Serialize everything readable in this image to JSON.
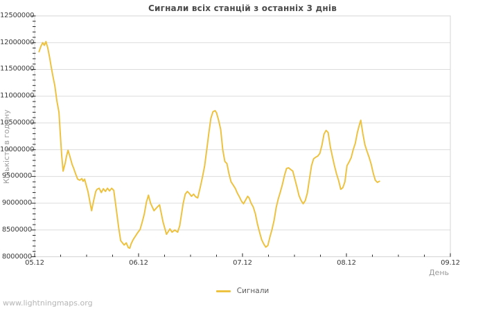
{
  "page": {
    "watermark": "www.lightningmaps.org"
  },
  "chart_data": {
    "type": "line",
    "title": "Сигнали всіх станцій з останніх 3 днів",
    "xlabel": "День",
    "ylabel": "Кількість в годину",
    "legend": {
      "position": "bottom-center",
      "series_label": "Сигнали"
    },
    "grid": "horizontal-only",
    "ylim": [
      8000000,
      12500000
    ],
    "x_range_days": [
      0,
      4
    ],
    "x_tick_labels": [
      "05.12",
      "06.12",
      "07.12",
      "08.12",
      "09.12"
    ],
    "x_tick_positions_days": [
      0,
      1,
      2,
      3,
      4
    ],
    "x_minor_step_days": 0.25,
    "y_tick_values": [
      8000000,
      8500000,
      9000000,
      9500000,
      10000000,
      10500000,
      11000000,
      11500000,
      12000000,
      12500000
    ],
    "y_tick_labels": [
      "8000000",
      "8500000",
      "9000000",
      "9500000",
      "10000000",
      "10500000",
      "11000000",
      "11500000",
      "12000000",
      "12500000"
    ],
    "y_minor_step": 100000,
    "colors": {
      "series": "#edc240",
      "grid": "#dcdcdc",
      "border": "#d4d4d4",
      "tick": "#222222",
      "tick_label": "#3a3a3a",
      "title": "#4a4a4a",
      "axis_title": "#9a9a9a",
      "watermark": "#b5b5b5"
    },
    "series": [
      {
        "name": "Сигнали",
        "points_days_value": [
          [
            0.042,
            11830000
          ],
          [
            0.06,
            11930000
          ],
          [
            0.078,
            12000000
          ],
          [
            0.093,
            11950000
          ],
          [
            0.109,
            12020000
          ],
          [
            0.127,
            11900000
          ],
          [
            0.145,
            11710000
          ],
          [
            0.16,
            11540000
          ],
          [
            0.18,
            11330000
          ],
          [
            0.194,
            11200000
          ],
          [
            0.214,
            10910000
          ],
          [
            0.234,
            10700000
          ],
          [
            0.247,
            10300000
          ],
          [
            0.26,
            9900000
          ],
          [
            0.274,
            9600000
          ],
          [
            0.294,
            9750000
          ],
          [
            0.307,
            9880000
          ],
          [
            0.321,
            9990000
          ],
          [
            0.341,
            9860000
          ],
          [
            0.361,
            9720000
          ],
          [
            0.374,
            9660000
          ],
          [
            0.394,
            9550000
          ],
          [
            0.414,
            9450000
          ],
          [
            0.434,
            9430000
          ],
          [
            0.454,
            9460000
          ],
          [
            0.467,
            9410000
          ],
          [
            0.481,
            9450000
          ],
          [
            0.501,
            9300000
          ],
          [
            0.514,
            9210000
          ],
          [
            0.534,
            9000000
          ],
          [
            0.548,
            8860000
          ],
          [
            0.568,
            9050000
          ],
          [
            0.588,
            9220000
          ],
          [
            0.601,
            9260000
          ],
          [
            0.621,
            9280000
          ],
          [
            0.641,
            9200000
          ],
          [
            0.661,
            9270000
          ],
          [
            0.681,
            9220000
          ],
          [
            0.701,
            9280000
          ],
          [
            0.721,
            9230000
          ],
          [
            0.741,
            9280000
          ],
          [
            0.761,
            9240000
          ],
          [
            0.781,
            8950000
          ],
          [
            0.808,
            8550000
          ],
          [
            0.828,
            8300000
          ],
          [
            0.841,
            8270000
          ],
          [
            0.861,
            8220000
          ],
          [
            0.881,
            8260000
          ],
          [
            0.901,
            8170000
          ],
          [
            0.915,
            8160000
          ],
          [
            0.928,
            8240000
          ],
          [
            0.948,
            8320000
          ],
          [
            0.968,
            8380000
          ],
          [
            0.988,
            8440000
          ],
          [
            1.015,
            8510000
          ],
          [
            1.035,
            8650000
          ],
          [
            1.055,
            8800000
          ],
          [
            1.075,
            9020000
          ],
          [
            1.095,
            9150000
          ],
          [
            1.115,
            9000000
          ],
          [
            1.149,
            8860000
          ],
          [
            1.175,
            8920000
          ],
          [
            1.202,
            8970000
          ],
          [
            1.235,
            8650000
          ],
          [
            1.269,
            8420000
          ],
          [
            1.302,
            8520000
          ],
          [
            1.322,
            8460000
          ],
          [
            1.349,
            8500000
          ],
          [
            1.376,
            8460000
          ],
          [
            1.396,
            8580000
          ],
          [
            1.429,
            9000000
          ],
          [
            1.449,
            9170000
          ],
          [
            1.469,
            9220000
          ],
          [
            1.489,
            9180000
          ],
          [
            1.509,
            9130000
          ],
          [
            1.529,
            9170000
          ],
          [
            1.549,
            9120000
          ],
          [
            1.569,
            9100000
          ],
          [
            1.596,
            9320000
          ],
          [
            1.616,
            9500000
          ],
          [
            1.636,
            9700000
          ],
          [
            1.656,
            10000000
          ],
          [
            1.676,
            10310000
          ],
          [
            1.696,
            10590000
          ],
          [
            1.716,
            10710000
          ],
          [
            1.736,
            10730000
          ],
          [
            1.75,
            10690000
          ],
          [
            1.77,
            10550000
          ],
          [
            1.79,
            10380000
          ],
          [
            1.81,
            10000000
          ],
          [
            1.83,
            9780000
          ],
          [
            1.85,
            9740000
          ],
          [
            1.87,
            9550000
          ],
          [
            1.89,
            9400000
          ],
          [
            1.91,
            9340000
          ],
          [
            1.93,
            9280000
          ],
          [
            1.95,
            9190000
          ],
          [
            1.97,
            9120000
          ],
          [
            1.99,
            9040000
          ],
          [
            2.01,
            8990000
          ],
          [
            2.03,
            9060000
          ],
          [
            2.05,
            9130000
          ],
          [
            2.063,
            9100000
          ],
          [
            2.083,
            9000000
          ],
          [
            2.103,
            8930000
          ],
          [
            2.124,
            8800000
          ],
          [
            2.144,
            8610000
          ],
          [
            2.164,
            8460000
          ],
          [
            2.184,
            8320000
          ],
          [
            2.204,
            8240000
          ],
          [
            2.224,
            8180000
          ],
          [
            2.244,
            8210000
          ],
          [
            2.264,
            8370000
          ],
          [
            2.284,
            8510000
          ],
          [
            2.304,
            8680000
          ],
          [
            2.324,
            8920000
          ],
          [
            2.344,
            9080000
          ],
          [
            2.364,
            9210000
          ],
          [
            2.384,
            9350000
          ],
          [
            2.404,
            9520000
          ],
          [
            2.424,
            9650000
          ],
          [
            2.444,
            9660000
          ],
          [
            2.464,
            9630000
          ],
          [
            2.484,
            9600000
          ],
          [
            2.504,
            9450000
          ],
          [
            2.524,
            9300000
          ],
          [
            2.544,
            9140000
          ],
          [
            2.564,
            9050000
          ],
          [
            2.584,
            8990000
          ],
          [
            2.604,
            9050000
          ],
          [
            2.624,
            9190000
          ],
          [
            2.644,
            9450000
          ],
          [
            2.664,
            9700000
          ],
          [
            2.684,
            9830000
          ],
          [
            2.704,
            9860000
          ],
          [
            2.724,
            9880000
          ],
          [
            2.744,
            9930000
          ],
          [
            2.764,
            10080000
          ],
          [
            2.784,
            10290000
          ],
          [
            2.804,
            10360000
          ],
          [
            2.824,
            10320000
          ],
          [
            2.845,
            10050000
          ],
          [
            2.865,
            9870000
          ],
          [
            2.885,
            9700000
          ],
          [
            2.905,
            9550000
          ],
          [
            2.925,
            9420000
          ],
          [
            2.945,
            9260000
          ],
          [
            2.965,
            9290000
          ],
          [
            2.985,
            9400000
          ],
          [
            3.005,
            9700000
          ],
          [
            3.025,
            9770000
          ],
          [
            3.045,
            9850000
          ],
          [
            3.065,
            10000000
          ],
          [
            3.085,
            10120000
          ],
          [
            3.105,
            10320000
          ],
          [
            3.125,
            10470000
          ],
          [
            3.138,
            10550000
          ],
          [
            3.158,
            10300000
          ],
          [
            3.178,
            10090000
          ],
          [
            3.198,
            9970000
          ],
          [
            3.218,
            9860000
          ],
          [
            3.238,
            9730000
          ],
          [
            3.258,
            9560000
          ],
          [
            3.278,
            9430000
          ],
          [
            3.298,
            9390000
          ],
          [
            3.318,
            9410000
          ]
        ]
      }
    ]
  }
}
